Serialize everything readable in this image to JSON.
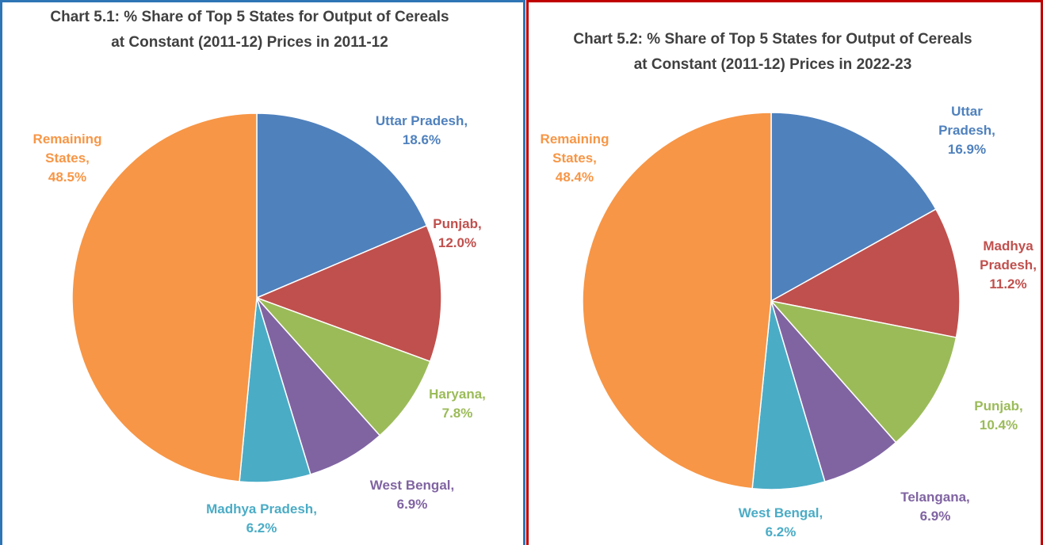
{
  "chart_data": [
    {
      "type": "pie",
      "title": "Chart 5.1: % Share of Top 5 States for Output of Cereals at Constant (2011-12) Prices in 2011-12",
      "categories": [
        "Uttar Pradesh,",
        "Punjab,",
        "Haryana,",
        "West Bengal,",
        "Madhya Pradesh,",
        "Remaining States,"
      ],
      "values": [
        18.6,
        12.0,
        7.8,
        6.9,
        6.2,
        48.5
      ],
      "value_labels": [
        "18.6%",
        "12.0%",
        "7.8%",
        "6.9%",
        "6.2%",
        "48.5%"
      ],
      "colors": [
        "#4f81bd",
        "#c0504d",
        "#9bbb59",
        "#8064a2",
        "#4bacc6",
        "#f79646"
      ]
    },
    {
      "type": "pie",
      "title": "Chart 5.2: % Share of Top 5 States for Output of Cereals at Constant (2011-12) Prices in 2022-23",
      "categories": [
        "Uttar Pradesh,",
        "Madhya Pradesh,",
        "Punjab,",
        "Telangana,",
        "West Bengal,",
        "Remaining States,"
      ],
      "values": [
        16.9,
        11.2,
        10.4,
        6.9,
        6.2,
        48.4
      ],
      "value_labels": [
        "16.9%",
        "11.2%",
        "10.4%",
        "6.9%",
        "6.2%",
        "48.4%"
      ],
      "colors": [
        "#4f81bd",
        "#c0504d",
        "#9bbb59",
        "#8064a2",
        "#4bacc6",
        "#f79646"
      ]
    }
  ]
}
